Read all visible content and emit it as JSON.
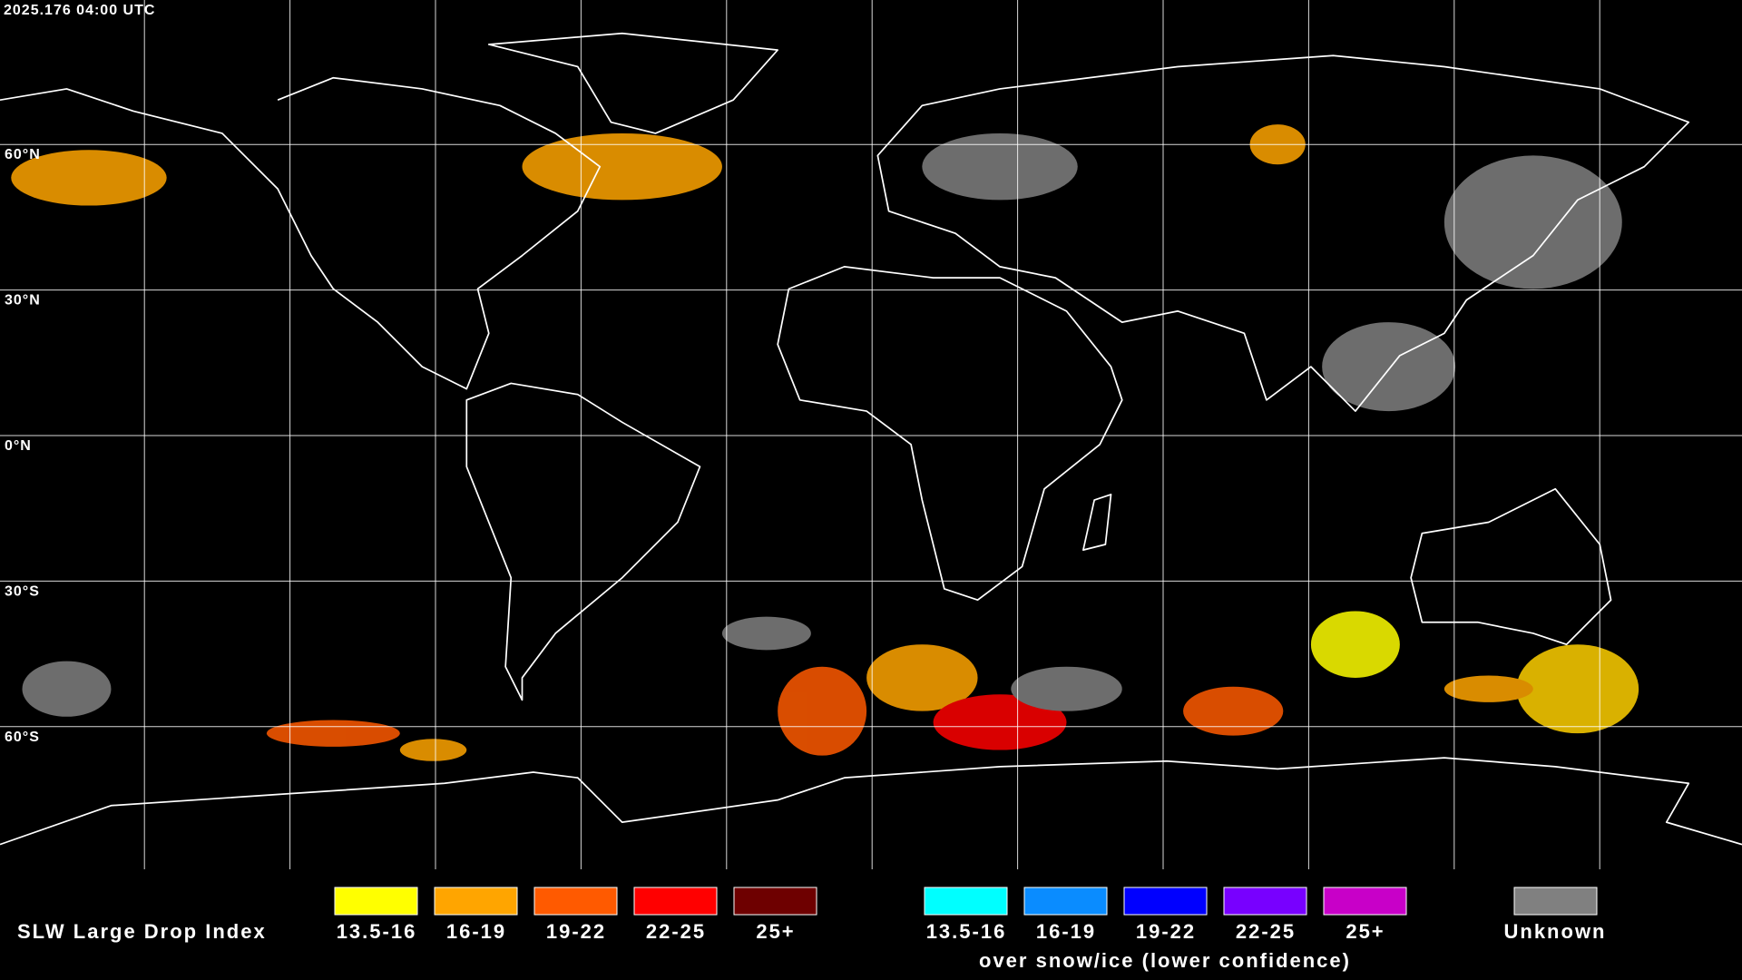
{
  "header": {
    "timestamp": "2025.176 04:00 UTC"
  },
  "map": {
    "latitude_labels": [
      "60°N",
      "30°N",
      "0°N",
      "30°S",
      "60°S"
    ]
  },
  "legend": {
    "title": "SLW Large Drop Index",
    "groups": [
      {
        "items": [
          {
            "label": "13.5-16",
            "color": "#ffff00"
          },
          {
            "label": "16-19",
            "color": "#ffa500"
          },
          {
            "label": "19-22",
            "color": "#ff5a00"
          },
          {
            "label": "22-25",
            "color": "#ff0000"
          },
          {
            "label": "25+",
            "color": "#6e0000"
          }
        ]
      },
      {
        "items": [
          {
            "label": "13.5-16",
            "color": "#00ffff"
          },
          {
            "label": "16-19",
            "color": "#0a8cff"
          },
          {
            "label": "19-22",
            "color": "#0000ff"
          },
          {
            "label": "22-25",
            "color": "#7800ff"
          },
          {
            "label": "25+",
            "color": "#c800c8"
          }
        ]
      }
    ],
    "snow_ice_note": "over snow/ice (lower confidence)",
    "unknown": {
      "label": "Unknown",
      "color": "#808080"
    }
  }
}
